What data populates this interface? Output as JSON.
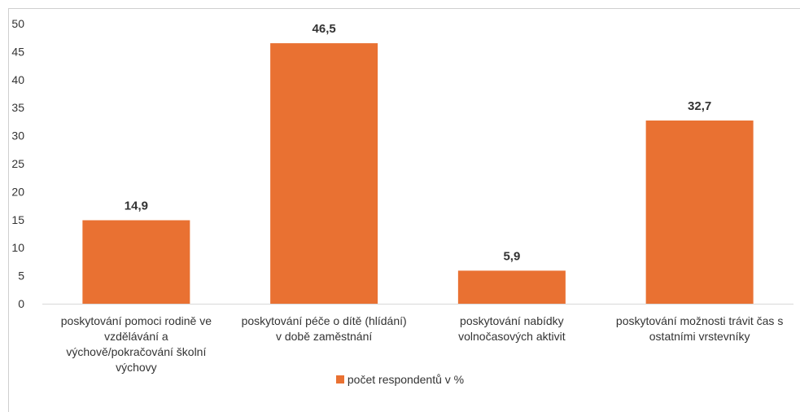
{
  "chart_data": {
    "type": "bar",
    "categories": [
      "poskytování pomoci rodině ve vzdělávání a výchově/pokračování školní výchovy",
      "poskytování péče o dítě (hlídání) v době zaměstnání",
      "poskytování nabídky volnočasových aktivit",
      "poskytování možnosti trávit čas s ostatními vrstevníky"
    ],
    "category_lines": [
      [
        "poskytování pomoci rodině ve",
        "vzdělávání a",
        "výchově/pokračování školní",
        "výchovy"
      ],
      [
        "poskytování péče o dítě (hlídání)",
        "v době zaměstnání"
      ],
      [
        "poskytování nabídky",
        "volnočasových aktivit"
      ],
      [
        "poskytování možnosti trávit čas s",
        "ostatními vrstevníky"
      ]
    ],
    "series": [
      {
        "name": "počet respondentů v %",
        "values": [
          14.9,
          46.5,
          5.9,
          32.7
        ]
      }
    ],
    "data_labels": [
      "14,9",
      "46,5",
      "5,9",
      "32,7"
    ],
    "yticks": [
      "0",
      "5",
      "10",
      "15",
      "20",
      "25",
      "30",
      "35",
      "40",
      "45",
      "50"
    ],
    "ylim": [
      0,
      50
    ],
    "grid": false,
    "legend": "bottom",
    "color": "#E97132"
  },
  "legend": {
    "label": "počet respondentů v %"
  }
}
